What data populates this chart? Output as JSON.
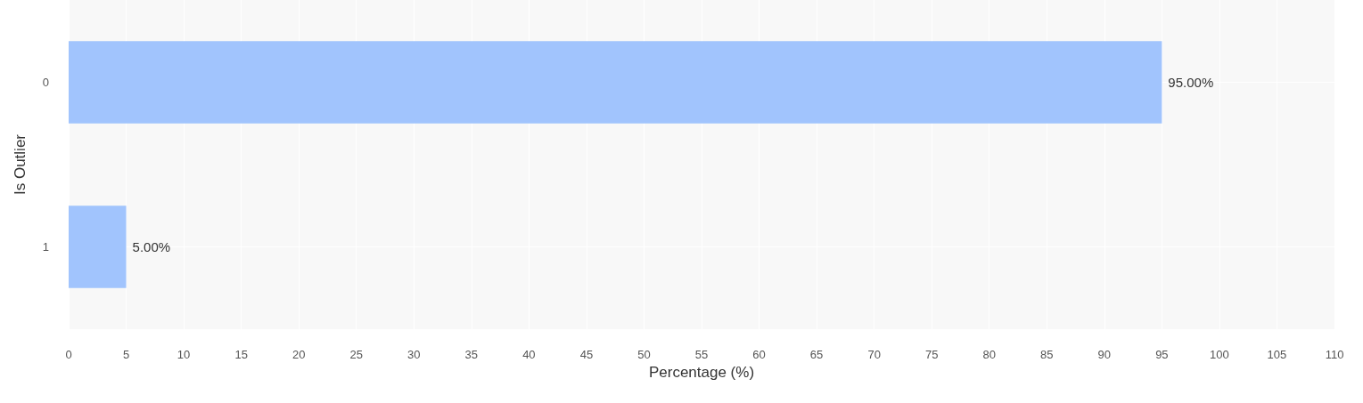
{
  "chart_data": {
    "type": "bar",
    "orientation": "horizontal",
    "categories": [
      "0",
      "1"
    ],
    "values": [
      95,
      5
    ],
    "color": "#a1c4fd",
    "value_labels": [
      "95.00%",
      "5.00%"
    ],
    "xlabel": "Percentage (%)",
    "ylabel": "Is Outlier",
    "xlim": [
      0,
      110
    ],
    "xticks": [
      0,
      5,
      10,
      15,
      20,
      25,
      30,
      35,
      40,
      45,
      50,
      55,
      60,
      65,
      70,
      75,
      80,
      85,
      90,
      95,
      100,
      105,
      110
    ],
    "grid": true
  }
}
